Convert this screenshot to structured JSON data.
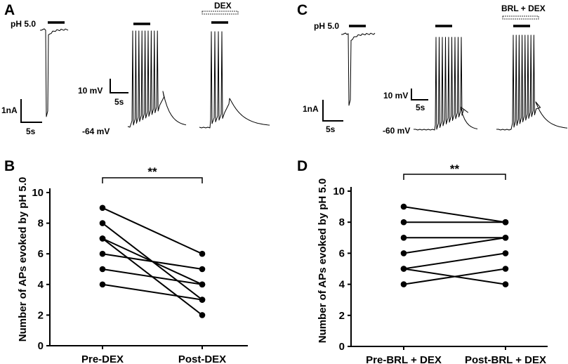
{
  "panels_top": {
    "A": {
      "letter": "A",
      "stim_label": "pH 5.0",
      "drug_label": "DEX",
      "current_scale": "1nA",
      "current_time_scale": "5s",
      "voltage_scale": "10 mV",
      "voltage_time_scale": "5s",
      "resting_potential": "-64 mV",
      "ap_count_pre": 9,
      "ap_count_post": 4
    },
    "C": {
      "letter": "C",
      "stim_label": "pH 5.0",
      "drug_label": "BRL + DEX",
      "current_scale": "1nA",
      "current_time_scale": "5s",
      "voltage_scale": "10 mV",
      "voltage_time_scale": "5s",
      "resting_potential": "-60 mV",
      "ap_count_pre": 9,
      "ap_count_post": 8
    }
  },
  "chart_data": [
    {
      "panel": "B",
      "type": "scatter",
      "subtype": "paired-dot-plot",
      "categories": [
        "Pre-DEX",
        "Post-DEX"
      ],
      "pairs": [
        [
          9,
          6
        ],
        [
          8,
          3
        ],
        [
          7,
          4
        ],
        [
          7,
          2
        ],
        [
          6,
          5
        ],
        [
          5,
          4
        ],
        [
          4,
          3
        ]
      ],
      "ylabel": "Number of APs evoked by pH 5.0",
      "xlabel": "",
      "ylim": [
        0,
        10
      ],
      "yticks": [
        "0",
        "2",
        "4",
        "6",
        "8",
        "10"
      ],
      "significance": "**"
    },
    {
      "panel": "D",
      "type": "scatter",
      "subtype": "paired-dot-plot",
      "categories": [
        "Pre-BRL + DEX",
        "Post-BRL + DEX"
      ],
      "pairs": [
        [
          9,
          8
        ],
        [
          8,
          8
        ],
        [
          7,
          7
        ],
        [
          6,
          7
        ],
        [
          5,
          6
        ],
        [
          5,
          4
        ],
        [
          4,
          5
        ]
      ],
      "ylabel": "Number of APs evoked by pH 5.0",
      "xlabel": "",
      "ylim": [
        0,
        10
      ],
      "yticks": [
        "0",
        "2",
        "4",
        "6",
        "8",
        "10"
      ],
      "significance": "**"
    }
  ]
}
